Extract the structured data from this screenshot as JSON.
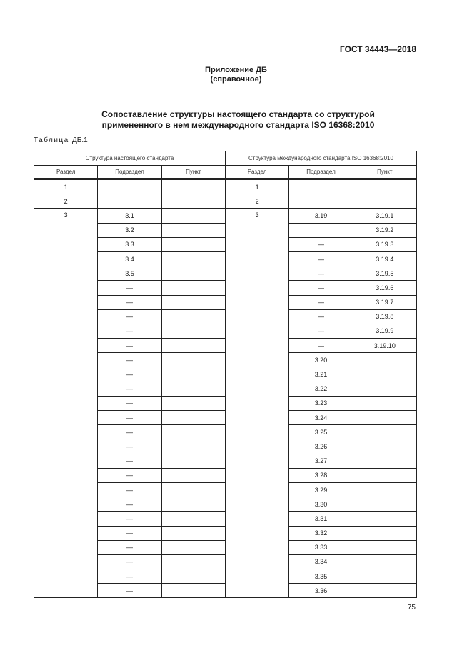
{
  "header": {
    "doc_id": "ГОСТ 34443—2018"
  },
  "appendix": {
    "title": "Приложение ДБ",
    "subtitle": "(справочное)"
  },
  "title": {
    "line1": "Сопоставление структуры настоящего стандарта со структурой",
    "line2": "примененного в нем международного стандарта ISO 16368:2010"
  },
  "table": {
    "caption_word": "Таблица",
    "caption_num": "ДБ.1",
    "group_headers": [
      "Структура настоящего стандарта",
      "Структура международного стандарта ISO 16368:2010"
    ],
    "columns": [
      "Раздел",
      "Подраздел",
      "Пункт",
      "Раздел",
      "Подраздел",
      "Пункт"
    ],
    "rows": [
      [
        "1",
        "",
        "",
        "1",
        "",
        ""
      ],
      [
        "2",
        "",
        "",
        "2",
        "",
        ""
      ],
      [
        "3",
        "3.1",
        "",
        "3",
        "3.19",
        "3.19.1"
      ],
      [
        "",
        "3.2",
        "",
        "",
        "",
        "3.19.2"
      ],
      [
        "",
        "3.3",
        "",
        "",
        "—",
        "3.19.3"
      ],
      [
        "",
        "3.4",
        "",
        "",
        "—",
        "3.19.4"
      ],
      [
        "",
        "3.5",
        "",
        "",
        "—",
        "3.19.5"
      ],
      [
        "",
        "—",
        "",
        "",
        "—",
        "3.19.6"
      ],
      [
        "",
        "—",
        "",
        "",
        "—",
        "3.19.7"
      ],
      [
        "",
        "—",
        "",
        "",
        "—",
        "3.19.8"
      ],
      [
        "",
        "—",
        "",
        "",
        "—",
        "3.19.9"
      ],
      [
        "",
        "—",
        "",
        "",
        "—",
        "3.19.10"
      ],
      [
        "",
        "—",
        "",
        "",
        "3.20",
        ""
      ],
      [
        "",
        "—",
        "",
        "",
        "3.21",
        ""
      ],
      [
        "",
        "—",
        "",
        "",
        "3.22",
        ""
      ],
      [
        "",
        "—",
        "",
        "",
        "3.23",
        ""
      ],
      [
        "",
        "—",
        "",
        "",
        "3.24",
        ""
      ],
      [
        "",
        "—",
        "",
        "",
        "3.25",
        ""
      ],
      [
        "",
        "—",
        "",
        "",
        "3.26",
        ""
      ],
      [
        "",
        "—",
        "",
        "",
        "3.27",
        ""
      ],
      [
        "",
        "—",
        "",
        "",
        "3.28",
        ""
      ],
      [
        "",
        "—",
        "",
        "",
        "3.29",
        ""
      ],
      [
        "",
        "—",
        "",
        "",
        "3.30",
        ""
      ],
      [
        "",
        "—",
        "",
        "",
        "3.31",
        ""
      ],
      [
        "",
        "—",
        "",
        "",
        "3.32",
        ""
      ],
      [
        "",
        "—",
        "",
        "",
        "3.33",
        ""
      ],
      [
        "",
        "—",
        "",
        "",
        "3.34",
        ""
      ],
      [
        "",
        "—",
        "",
        "",
        "3.35",
        ""
      ],
      [
        "",
        "—",
        "",
        "",
        "3.36",
        ""
      ]
    ]
  },
  "page_number": "75"
}
